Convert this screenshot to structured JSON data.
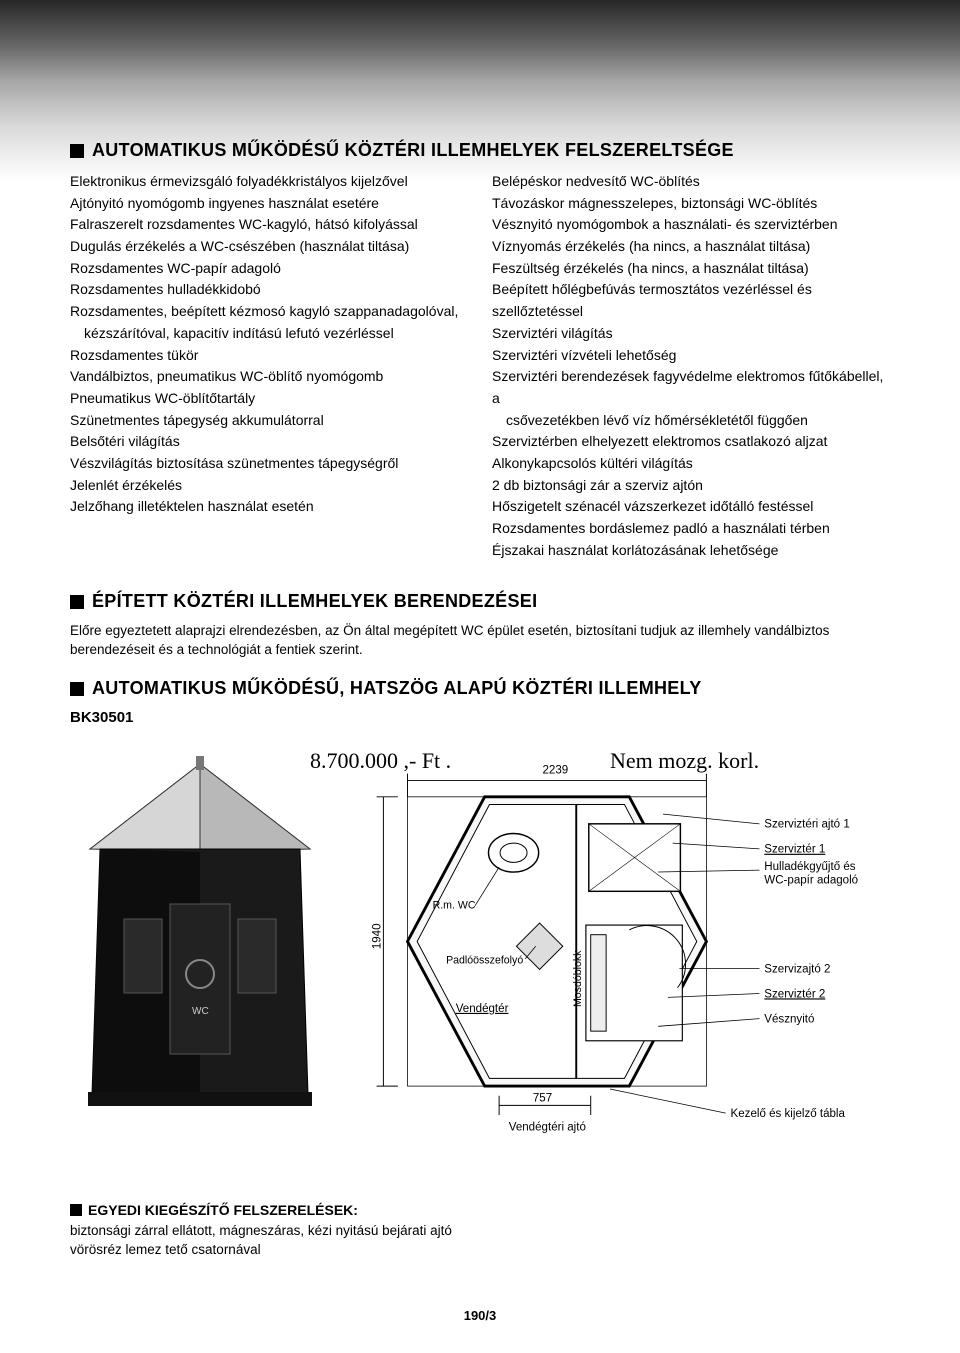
{
  "section1": {
    "title": "AUTOMATIKUS MŰKÖDÉSŰ KÖZTÉRI ILLEMHELYEK FELSZERELTSÉGE",
    "left": [
      "Elektronikus érmevizsgáló folyadékkristályos kijelzővel",
      "Ajtónyitó nyomógomb ingyenes használat esetére",
      "Falraszerelt rozsdamentes WC-kagyló, hátsó kifolyással",
      "Dugulás érzékelés a WC-csészében (használat tiltása)",
      "Rozsdamentes WC-papír adagoló",
      "Rozsdamentes hulladékkidobó",
      "Rozsdamentes, beépített kézmosó kagyló szappanadagolóval,",
      " kézszárítóval, kapacitív indítású lefutó vezérléssel",
      "Rozsdamentes tükör",
      "Vandálbiztos, pneumatikus WC-öblítő nyomógomb",
      "Pneumatikus WC-öblítőtartály",
      "Szünetmentes tápegység akkumulátorral",
      "Belsőtéri világítás",
      "Vészvilágítás biztosítása szünetmentes tápegységről",
      "Jelenlét érzékelés",
      "Jelzőhang illetéktelen használat esetén"
    ],
    "right": [
      "Belépéskor nedvesítő WC-öblítés",
      "Távozáskor mágnesszelepes, biztonsági WC-öblítés",
      "Vésznyitó nyomógombok a használati- és szerviztérben",
      "Víznyomás érzékelés (ha nincs, a használat tiltása)",
      "Feszültség érzékelés (ha nincs, a használat tiltása)",
      "Beépített hőlégbefúvás termosztátos vezérléssel és szellőztetéssel",
      "Szerviztéri világítás",
      "Szerviztéri vízvételi lehetőség",
      "Szerviztéri berendezések fagyvédelme elektromos fűtőkábellel, a",
      " csővezetékben lévő víz hőmérsékletétől függően",
      "Szerviztérben elhelyezett elektromos csatlakozó aljzat",
      "Alkonykapcsolós kültéri világítás",
      "2 db biztonsági zár a szerviz ajtón",
      "Hőszigetelt szénacél vázszerkezet időtálló festéssel",
      "Rozsdamentes bordáslemez padló a használati térben",
      "Éjszakai használat korlátozásának lehetősége"
    ]
  },
  "section2": {
    "title": "ÉPÍTETT KÖZTÉRI ILLEMHELYEK BERENDEZÉSEI",
    "intro": "Előre egyeztetett alaprajzi elrendezésben, az Ön által megépített WC épület esetén, biztosítani tudjuk az illemhely vandálbiztos berendezéseit és a technológiát a fentiek szerint."
  },
  "section3": {
    "title": "AUTOMATIKUS MŰKÖDÉSŰ, HATSZÖG ALAPÚ KÖZTÉRI ILLEMHELY",
    "model": "BK30501",
    "price_hand": "8.700.000 ,- Ft .",
    "note_hand": "Nem mozg. korl.",
    "dims": {
      "width": "2239",
      "height": "1940",
      "door": "757"
    },
    "plan_labels": {
      "rm_wc": "R.m. WC",
      "padlo": "Padlóösszefolyó",
      "vendegter": "Vendégtér",
      "mosdo": "Mosdóblokk",
      "v_ajto": "Vendégtéri ajtó",
      "s_ajto1": "Szerviztéri ajtó 1",
      "s1": "Szerviztér 1",
      "hull": "Hulladékgyűjtő és WC-papír adagoló",
      "s_ajto2": "Szervizajtó 2",
      "s2": "Szerviztér 2",
      "veszny": "Vésznyitó",
      "kezelo": "Kezelő és kijelző tábla"
    }
  },
  "extras": {
    "title": "EGYEDI KIEGÉSZÍTŐ FELSZERELÉSEK:",
    "lines": [
      "biztonsági zárral ellátott, mágneszáras, kézi nyitású bejárati ajtó",
      "vörösréz lemez tető csatornával"
    ]
  },
  "page_number": "190/3",
  "colors": {
    "ink": "#000000",
    "paper": "#ffffff",
    "roof_light": "#e8e8e8",
    "roof_mid": "#bcbcbc",
    "wall_dark": "#1f1f1f",
    "wall_darker": "#0e0e0e",
    "plan_fill": "#f6f6f6"
  }
}
